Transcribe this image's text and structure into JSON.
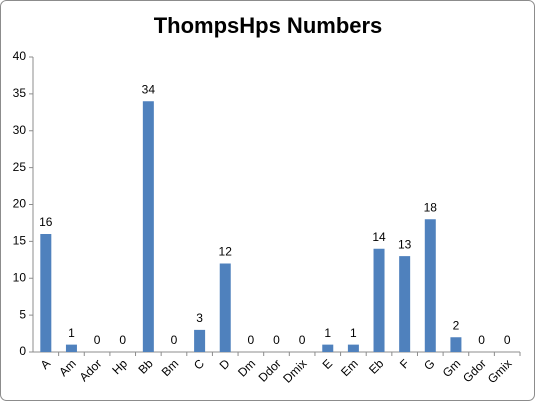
{
  "chart_data": {
    "type": "bar",
    "title": "ThompsHps Numbers",
    "categories": [
      "A",
      "Am",
      "Ador",
      "Hp",
      "Bb",
      "Bm",
      "C",
      "D",
      "Dm",
      "Ddor",
      "Dmix",
      "E",
      "Em",
      "Eb",
      "F",
      "G",
      "Gm",
      "Gdor",
      "Gmix"
    ],
    "values": [
      16,
      1,
      0,
      0,
      34,
      0,
      3,
      12,
      0,
      0,
      0,
      1,
      1,
      14,
      13,
      18,
      2,
      0,
      0
    ],
    "color": "#4f81bd",
    "ylim": [
      0,
      40
    ],
    "yticks": [
      0,
      5,
      10,
      15,
      20,
      25,
      30,
      35,
      40
    ],
    "grid": false
  }
}
